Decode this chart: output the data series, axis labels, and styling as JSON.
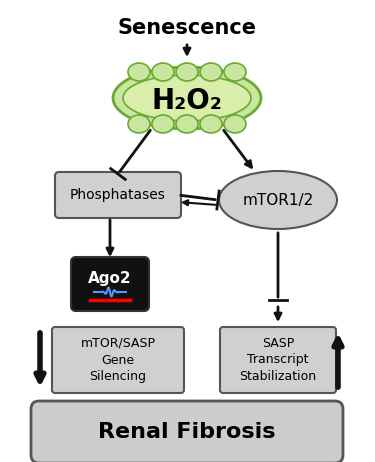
{
  "title": "Senescence",
  "bg_color": "#ffffff",
  "mito_fill_outer": "#c8e6a0",
  "mito_fill_inner": "#d8eeaa",
  "mito_stroke": "#6aaa30",
  "h2o2_text": "H₂O₂",
  "phosphatases_text": "Phosphatases",
  "mtor_text": "mTOR1/2",
  "ago2_text": "Ago2",
  "gene_silencing_text": "mTOR/SASP\nGene\nSilencing",
  "sasp_text": "SASP\nTranscript\nStabilization",
  "renal_fibrosis_text": "Renal Fibrosis",
  "box_fill": "#d0d0d0",
  "box_edge": "#555555",
  "rf_fill_top": "#d8d8d8",
  "rf_fill_bot": "#b0b0b0",
  "ago2_fill": "#111111",
  "ago2_text_color": "#ffffff",
  "arrow_color": "#111111"
}
